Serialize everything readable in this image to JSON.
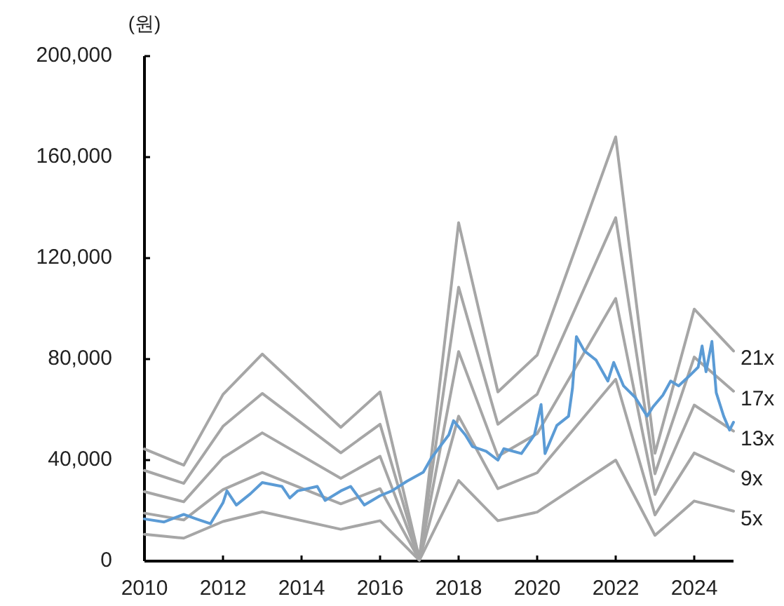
{
  "chart_data": {
    "type": "line",
    "ylabel": "(원)",
    "xlim": [
      2010,
      2025
    ],
    "ylim": [
      0,
      200000
    ],
    "xticks": [
      2010,
      2012,
      2014,
      2016,
      2018,
      2020,
      2022,
      2024
    ],
    "yticks": [
      {
        "value": 0,
        "label": "0"
      },
      {
        "value": 40000,
        "label": "40,000"
      },
      {
        "value": 80000,
        "label": "80,000"
      },
      {
        "value": 120000,
        "label": "120,000"
      },
      {
        "value": 160000,
        "label": "160,000"
      },
      {
        "value": 200000,
        "label": "200,000"
      }
    ],
    "series": [
      {
        "name": "21x",
        "color": "#a6a6a6",
        "x": [
          2010,
          2011,
          2012,
          2013,
          2015,
          2016,
          2017,
          2018,
          2019,
          2020,
          2022,
          2023,
          2024,
          2025
        ],
        "values": [
          44400,
          38000,
          66000,
          82000,
          53000,
          67000,
          1000,
          134000,
          67000,
          81600,
          168000,
          42700,
          99800,
          83200
        ]
      },
      {
        "name": "17x",
        "color": "#a6a6a6",
        "x": [
          2010,
          2011,
          2012,
          2013,
          2015,
          2016,
          2017,
          2018,
          2019,
          2020,
          2022,
          2023,
          2024,
          2025
        ],
        "values": [
          35900,
          30800,
          53400,
          66400,
          42900,
          54200,
          900,
          108500,
          54200,
          66100,
          136000,
          34600,
          80800,
          67300
        ]
      },
      {
        "name": "13x",
        "color": "#a6a6a6",
        "x": [
          2010,
          2011,
          2012,
          2013,
          2015,
          2016,
          2017,
          2018,
          2019,
          2020,
          2022,
          2023,
          2024,
          2025
        ],
        "values": [
          27500,
          23500,
          40900,
          50800,
          32800,
          41500,
          700,
          83000,
          41500,
          50500,
          104000,
          26400,
          61800,
          51500
        ]
      },
      {
        "name": "9x",
        "color": "#a6a6a6",
        "x": [
          2010,
          2011,
          2012,
          2013,
          2015,
          2016,
          2017,
          2018,
          2019,
          2020,
          2022,
          2023,
          2024,
          2025
        ],
        "values": [
          19000,
          16300,
          28300,
          35100,
          22700,
          28700,
          500,
          57400,
          28700,
          35000,
          72000,
          18300,
          42800,
          35600
        ]
      },
      {
        "name": "5x",
        "color": "#a6a6a6",
        "x": [
          2010,
          2011,
          2012,
          2013,
          2015,
          2016,
          2017,
          2018,
          2019,
          2020,
          2022,
          2023,
          2024,
          2025
        ],
        "values": [
          10600,
          9100,
          15700,
          19500,
          12600,
          16000,
          300,
          31900,
          16000,
          19400,
          40000,
          10200,
          23800,
          19800
        ]
      },
      {
        "color": "#5b9bd5",
        "x": [
          2010,
          2010.5,
          2011,
          2011.32,
          2011.68,
          2012,
          2012.1,
          2012.34,
          2012.7,
          2013,
          2013.5,
          2013.7,
          2013.9,
          2014.4,
          2014.6,
          2015,
          2015.25,
          2015.6,
          2016,
          2016.3,
          2016.68,
          2017.1,
          2017.3,
          2017.75,
          2017.87,
          2018.17,
          2018.35,
          2018.7,
          2019,
          2019.15,
          2019.6,
          2019.93,
          2020.1,
          2020.2,
          2020.5,
          2020.8,
          2020.9,
          2021,
          2021.2,
          2021.5,
          2021.8,
          2021.95,
          2022.2,
          2022.5,
          2022.8,
          2022.95,
          2023.2,
          2023.4,
          2023.6,
          2023.86,
          2024.1,
          2024.2,
          2024.3,
          2024.45,
          2024.56,
          2024.75,
          2024.9,
          2025
        ],
        "values": [
          16700,
          15500,
          18500,
          16700,
          14800,
          23100,
          27800,
          22200,
          26700,
          31100,
          29600,
          25000,
          27800,
          29600,
          24000,
          27800,
          29600,
          22200,
          25900,
          27800,
          31600,
          35200,
          40700,
          50000,
          55600,
          50000,
          45400,
          43500,
          40000,
          44500,
          42600,
          50000,
          62000,
          42600,
          53700,
          57400,
          68500,
          88900,
          83300,
          79600,
          71300,
          78700,
          69400,
          64800,
          57400,
          61100,
          65700,
          71300,
          69400,
          73100,
          76800,
          85200,
          75000,
          87000,
          66700,
          57400,
          51900,
          55000
        ]
      }
    ]
  }
}
